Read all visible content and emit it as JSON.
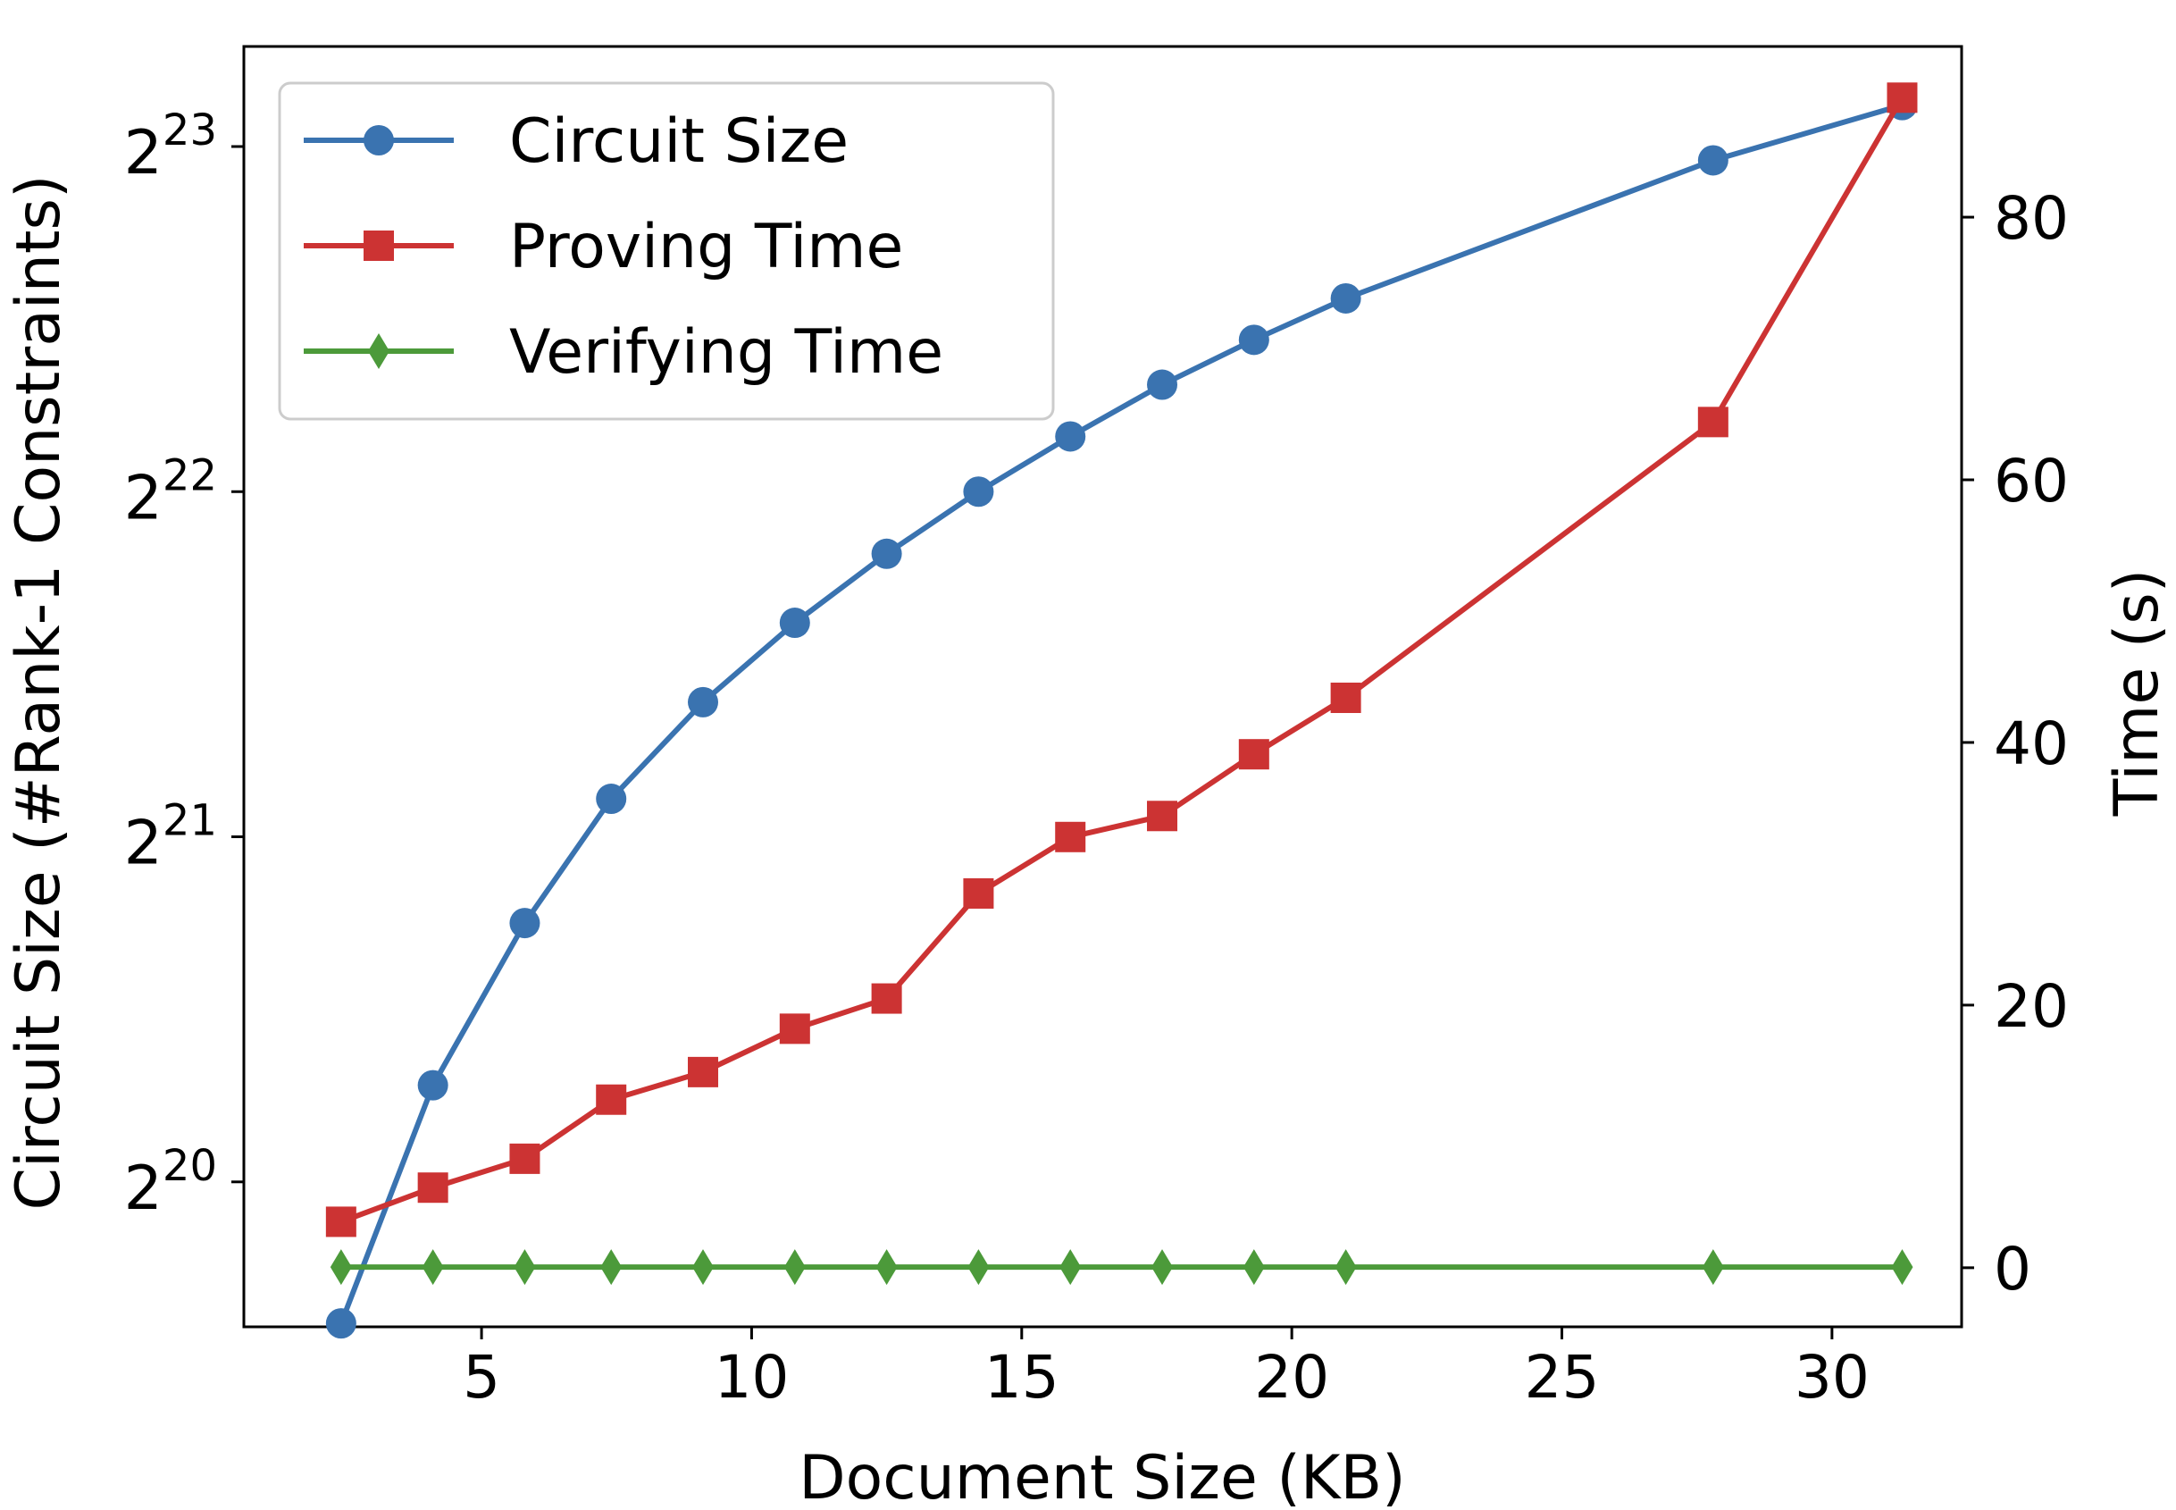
{
  "chart_data": {
    "type": "line",
    "xlabel": "Document Size (KB)",
    "ylabel_left": "Circuit Size (#Rank-1 Constraints)",
    "ylabel_right": "Time (s)",
    "x_ticks": [
      "5",
      "10",
      "15",
      "20",
      "25",
      "30"
    ],
    "y_left_scale": "log2",
    "y_left_ticks": [
      {
        "base": "2",
        "exp": "20"
      },
      {
        "base": "2",
        "exp": "21"
      },
      {
        "base": "2",
        "exp": "22"
      },
      {
        "base": "2",
        "exp": "23"
      }
    ],
    "y_right_ticks": [
      "0",
      "20",
      "40",
      "60",
      "80"
    ],
    "xlim": [
      0.6,
      32.4
    ],
    "ylim_left_log2": [
      19.58,
      23.29
    ],
    "ylim_right": [
      -4.5,
      93
    ],
    "legend_position": "upper-left",
    "x": [
      2.4,
      4.1,
      5.8,
      7.4,
      9.1,
      10.8,
      12.5,
      14.2,
      15.9,
      17.6,
      19.3,
      21.0,
      27.8,
      31.3
    ],
    "series": [
      {
        "name": "Circuit Size",
        "axis": "left",
        "marker": "circle",
        "color": "#3a73b0",
        "values_log2": [
          19.59,
          20.28,
          20.75,
          21.11,
          21.39,
          21.62,
          21.82,
          22.0,
          22.16,
          22.31,
          22.44,
          22.56,
          22.96,
          23.12
        ]
      },
      {
        "name": "Proving Time",
        "axis": "right",
        "marker": "square",
        "color": "#cc3333",
        "values": [
          3.5,
          6.1,
          8.3,
          12.8,
          14.9,
          18.2,
          20.5,
          28.5,
          32.8,
          34.4,
          39.1,
          43.4,
          64.4,
          89.1
        ]
      },
      {
        "name": "Verifying Time",
        "axis": "right",
        "marker": "diamond",
        "color": "#4c9a3a",
        "values": [
          0.05,
          0.05,
          0.05,
          0.05,
          0.05,
          0.05,
          0.05,
          0.05,
          0.05,
          0.05,
          0.05,
          0.05,
          0.05,
          0.05
        ]
      }
    ]
  }
}
